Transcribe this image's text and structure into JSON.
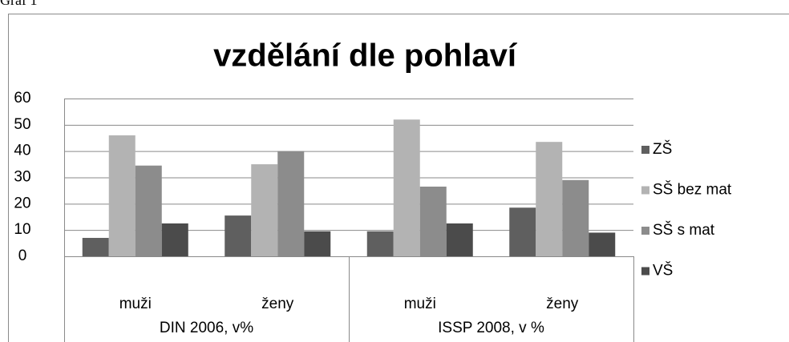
{
  "caption": "Graf 1",
  "chart_data": {
    "type": "bar",
    "title": "vzdělání dle pohlaví",
    "categories": [
      "muži",
      "ženy",
      "muži",
      "ženy"
    ],
    "category_groups": [
      "DIN 2006, v%",
      "ISSP 2008, v %"
    ],
    "series": [
      {
        "name": "ZŠ",
        "color": "#5f5f5f",
        "values": [
          7,
          15.5,
          9.5,
          18.5
        ]
      },
      {
        "name": "SŠ bez mat",
        "color": "#b3b3b3",
        "values": [
          46,
          35,
          52,
          43.5
        ]
      },
      {
        "name": "SŠ s mat",
        "color": "#8c8c8c",
        "values": [
          34.5,
          40,
          26.5,
          29
        ]
      },
      {
        "name": "VŠ",
        "color": "#4b4b4b",
        "values": [
          12.5,
          9.5,
          12.5,
          9
        ]
      }
    ],
    "ylim": [
      0,
      60
    ],
    "yticks": [
      0,
      10,
      20,
      30,
      40,
      50,
      60
    ],
    "grid": true,
    "legend": "right"
  }
}
